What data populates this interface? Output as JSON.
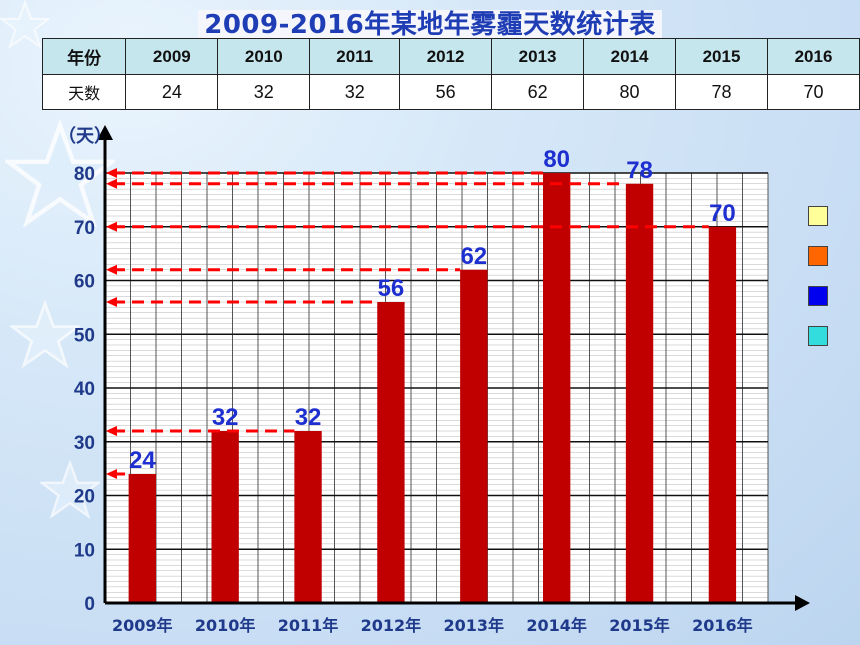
{
  "title": "2009-2016年某地年雾霾天数统计表",
  "table": {
    "header": [
      "年份",
      "2009",
      "2010",
      "2011",
      "2012",
      "2013",
      "2014",
      "2015",
      "2016"
    ],
    "row": [
      "天数",
      "24",
      "32",
      "32",
      "56",
      "62",
      "80",
      "78",
      "70"
    ]
  },
  "colors": {
    "bar": "#c00000",
    "dash": "#ff0000",
    "label": "#1e2fd0",
    "legend": [
      "#ffff99",
      "#ff6600",
      "#0000ee",
      "#33dddd"
    ]
  },
  "chart_data": {
    "type": "bar",
    "categories": [
      "2009年",
      "2010年",
      "2011年",
      "2012年",
      "2013年",
      "2014年",
      "2015年",
      "2016年"
    ],
    "values": [
      24,
      32,
      32,
      56,
      62,
      80,
      78,
      70
    ],
    "title": "2009-2016年某地年雾霾天数统计表",
    "ylabel": "（天）",
    "xlabel": "",
    "ylim": [
      0,
      80
    ],
    "yticks": [
      0,
      10,
      20,
      30,
      40,
      50,
      60,
      70,
      80
    ],
    "grid": true
  }
}
